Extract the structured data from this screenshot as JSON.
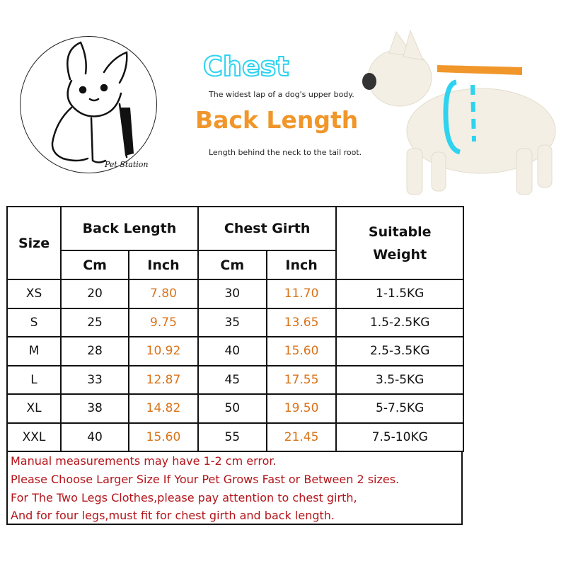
{
  "logo": {
    "text": "Pet Station"
  },
  "legend": {
    "chest_title": "Chest",
    "chest_desc": "The widest lap of a dog's upper body.",
    "back_title": "Back Length",
    "back_desc": "Length behind the neck to the tail root.",
    "chest_color": "#2ed3f0",
    "back_color": "#f0962a"
  },
  "table": {
    "headers": {
      "size": "Size",
      "back_length": "Back Length",
      "chest_girth": "Chest Girth",
      "weight": "Suitable Weight",
      "cm": "Cm",
      "inch": "Inch"
    },
    "rows": [
      {
        "size": "XS",
        "back_cm": "20",
        "back_in": "7.80",
        "chest_cm": "30",
        "chest_in": "11.70",
        "weight": "1-1.5KG"
      },
      {
        "size": "S",
        "back_cm": "25",
        "back_in": "9.75",
        "chest_cm": "35",
        "chest_in": "13.65",
        "weight": "1.5-2.5KG"
      },
      {
        "size": "M",
        "back_cm": "28",
        "back_in": "10.92",
        "chest_cm": "40",
        "chest_in": "15.60",
        "weight": "2.5-3.5KG"
      },
      {
        "size": "L",
        "back_cm": "33",
        "back_in": "12.87",
        "chest_cm": "45",
        "chest_in": "17.55",
        "weight": "3.5-5KG"
      },
      {
        "size": "XL",
        "back_cm": "38",
        "back_in": "14.82",
        "chest_cm": "50",
        "chest_in": "19.50",
        "weight": "5-7.5KG"
      },
      {
        "size": "XXL",
        "back_cm": "40",
        "back_in": "15.60",
        "chest_cm": "55",
        "chest_in": "21.45",
        "weight": "7.5-10KG"
      }
    ]
  },
  "notes": [
    "Manual measurements may have 1-2 cm error.",
    "Please Choose Larger Size If Your Pet Grows Fast or Between 2 sizes.",
    "For The Two Legs Clothes,please pay attention to chest girth,",
    "And for four legs,must fit for chest girth and back length."
  ]
}
